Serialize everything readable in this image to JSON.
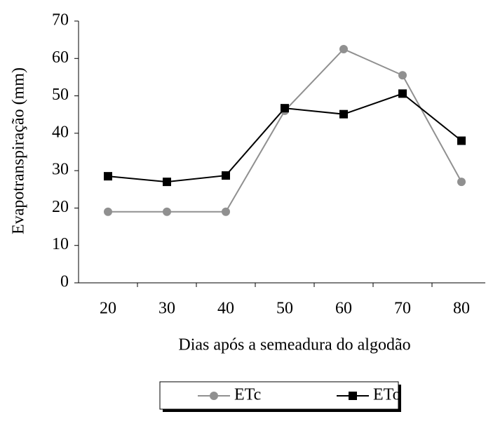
{
  "chart_data": {
    "type": "line",
    "categories": [
      20,
      30,
      40,
      50,
      60,
      70,
      80
    ],
    "series": [
      {
        "name": "ETc",
        "color": "#909090",
        "marker": "circle",
        "values": [
          19,
          19,
          19,
          46,
          62.5,
          55.5,
          27
        ]
      },
      {
        "name": "ETo",
        "color": "#000000",
        "marker": "square",
        "values": [
          28.5,
          27,
          28.7,
          46.7,
          45.1,
          50.6,
          38
        ]
      }
    ],
    "y_label": "Evapotranspiração (mm)",
    "x_label": "Dias após a semeadura do algodão",
    "ylim": [
      0,
      70
    ],
    "yticks": [
      0,
      10,
      20,
      30,
      40,
      50,
      60,
      70
    ],
    "grid": false,
    "legend": "bottom"
  }
}
